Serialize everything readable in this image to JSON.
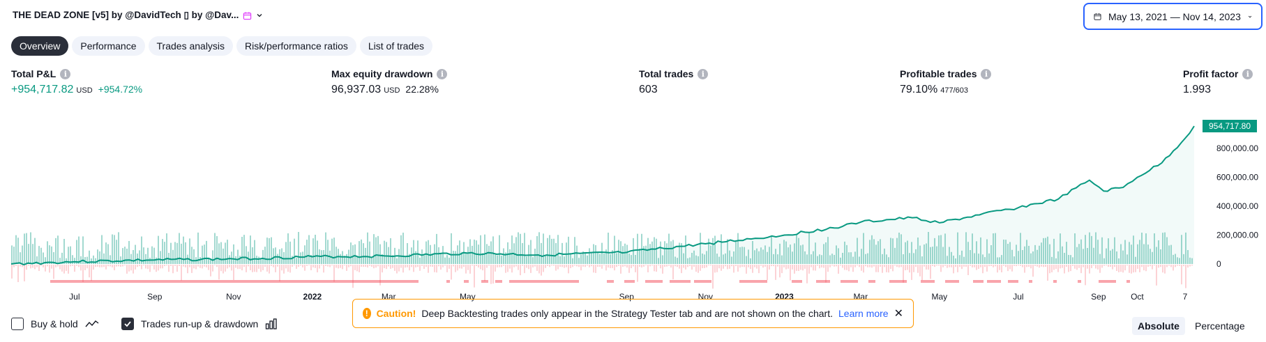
{
  "header": {
    "title": "THE DEAD ZONE [v5] by @DavidTech ▯ by @Dav...",
    "date_range": "May 13, 2021 — Nov 14, 2023"
  },
  "tabs": [
    {
      "label": "Overview",
      "active": true
    },
    {
      "label": "Performance",
      "active": false
    },
    {
      "label": "Trades analysis",
      "active": false
    },
    {
      "label": "Risk/performance ratios",
      "active": false
    },
    {
      "label": "List of trades",
      "active": false
    }
  ],
  "metrics": {
    "total_pnl": {
      "title": "Total P&L",
      "value": "+954,717.82",
      "unit": "USD",
      "pct": "+954.72%"
    },
    "max_drawdown": {
      "title": "Max equity drawdown",
      "value": "96,937.03",
      "unit": "USD",
      "pct": "22.28%"
    },
    "total_trades": {
      "title": "Total trades",
      "value": "603"
    },
    "profitable_trades": {
      "title": "Profitable trades",
      "value": "79.10%",
      "sub": "477/603"
    },
    "profit_factor": {
      "title": "Profit factor",
      "value": "1.993"
    }
  },
  "chart_data": {
    "type": "line",
    "title": "",
    "last_value_label": "954,717.80",
    "y_ticks": [
      "0",
      "200,000.00",
      "400,000.00",
      "600,000.00",
      "800,000.00"
    ],
    "y_values": [
      0,
      200000,
      400000,
      600000,
      800000
    ],
    "ylim": [
      0,
      954717.8
    ],
    "x_ticks": [
      {
        "label": "Jul",
        "bold": false
      },
      {
        "label": "Sep",
        "bold": false
      },
      {
        "label": "Nov",
        "bold": false
      },
      {
        "label": "2022",
        "bold": true
      },
      {
        "label": "Mar",
        "bold": false
      },
      {
        "label": "May",
        "bold": false
      },
      {
        "label": "Sep",
        "bold": false
      },
      {
        "label": "Nov",
        "bold": false
      },
      {
        "label": "2023",
        "bold": true
      },
      {
        "label": "Mar",
        "bold": false
      },
      {
        "label": "May",
        "bold": false
      },
      {
        "label": "Jul",
        "bold": false
      },
      {
        "label": "Sep",
        "bold": false
      },
      {
        "label": "Oct",
        "bold": false
      },
      {
        "label": "7",
        "bold": false
      }
    ],
    "x_tick_dates": [
      "2021-07-01",
      "2021-09-01",
      "2021-11-01",
      "2022-01-01",
      "2022-03-01",
      "2022-05-01",
      "2022-09-01",
      "2022-11-01",
      "2023-01-01",
      "2023-03-01",
      "2023-05-01",
      "2023-07-01",
      "2023-09-01",
      "2023-10-01",
      "2023-11-07"
    ],
    "x_range": [
      "2021-05-13",
      "2023-11-14"
    ],
    "series": [
      {
        "color": "#089981",
        "points": [
          [
            "2021-05-13",
            0
          ],
          [
            "2021-07-01",
            16000
          ],
          [
            "2021-09-01",
            28000
          ],
          [
            "2021-11-01",
            35000
          ],
          [
            "2022-01-01",
            50000
          ],
          [
            "2022-03-01",
            55000
          ],
          [
            "2022-05-01",
            75000
          ],
          [
            "2022-07-01",
            62000
          ],
          [
            "2022-09-01",
            80000
          ],
          [
            "2022-11-01",
            140000
          ],
          [
            "2023-01-01",
            200000
          ],
          [
            "2023-02-15",
            260000
          ],
          [
            "2023-03-01",
            290000
          ],
          [
            "2023-04-10",
            320000
          ],
          [
            "2023-05-01",
            285000
          ],
          [
            "2023-06-01",
            340000
          ],
          [
            "2023-07-01",
            390000
          ],
          [
            "2023-08-01",
            450000
          ],
          [
            "2023-08-25",
            580000
          ],
          [
            "2023-09-05",
            505000
          ],
          [
            "2023-09-20",
            530000
          ],
          [
            "2023-10-01",
            600000
          ],
          [
            "2023-10-20",
            700000
          ],
          [
            "2023-11-07",
            870000
          ],
          [
            "2023-11-14",
            954717.8
          ]
        ]
      }
    ],
    "runup_color": "#089981",
    "drawdown_color": "#f23645"
  },
  "bottom": {
    "buy_hold": {
      "label": "Buy & hold",
      "checked": false
    },
    "runup": {
      "label": "Trades run-up & drawdown",
      "checked": true
    },
    "caution": {
      "title": "Caution!",
      "text": "Deep Backtesting trades only appear in the Strategy Tester tab and are not shown on the chart.",
      "link": "Learn more"
    },
    "modes": [
      {
        "label": "Absolute",
        "active": true
      },
      {
        "label": "Percentage",
        "active": false
      }
    ]
  },
  "colors": {
    "accent": "#2962ff",
    "positive": "#089981",
    "negative": "#f23645",
    "warning": "#ff9800"
  }
}
